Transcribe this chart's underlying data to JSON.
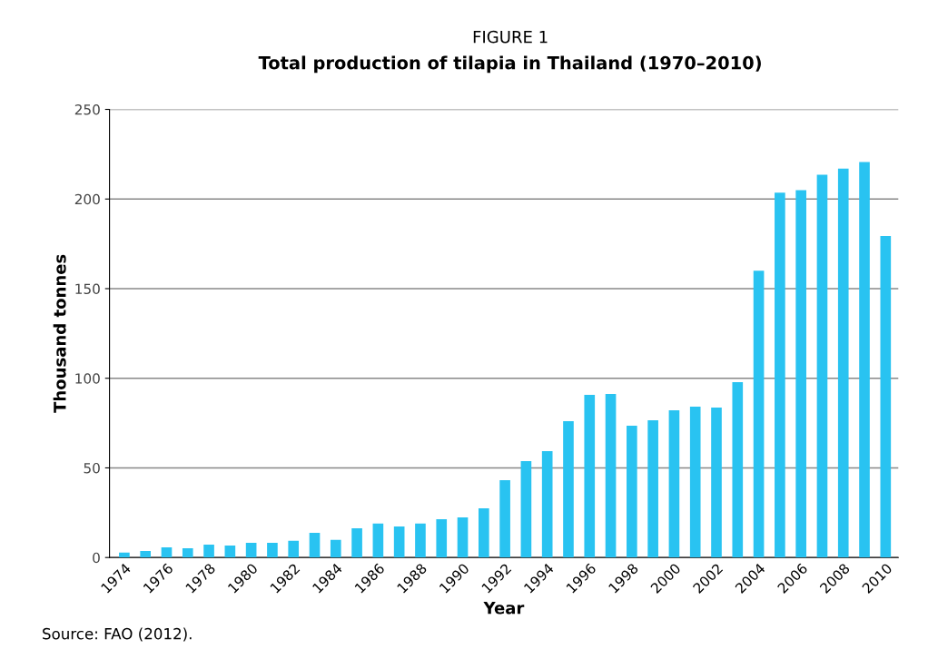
{
  "chart_data": {
    "type": "bar",
    "title": "FIGURE 1",
    "subtitle": "Total production of tilapia in Thailand (1970–2010)",
    "xlabel": "Year",
    "ylabel": "Thousand tonnes",
    "categories": [
      "1974",
      null,
      "1976",
      null,
      "1978",
      null,
      "1980",
      null,
      "1982",
      null,
      "1984",
      null,
      "1986",
      null,
      "1988",
      null,
      "1990",
      null,
      "1992",
      null,
      "1994",
      null,
      "1996",
      null,
      "1998",
      null,
      "2000",
      null,
      "2002",
      null,
      "2004",
      null,
      "2006",
      null,
      "2008",
      null,
      "2010"
    ],
    "values": [
      2.7,
      3.7,
      5.7,
      5.2,
      7.2,
      6.7,
      8.2,
      8.2,
      9.3,
      13.8,
      9.8,
      16.3,
      18.9,
      17.3,
      18.9,
      21.4,
      22.4,
      27.4,
      43.2,
      53.8,
      59.4,
      76.1,
      90.7,
      91.2,
      73.5,
      76.6,
      82.1,
      84.1,
      83.6,
      97.8,
      160,
      203.5,
      205,
      213.5,
      217,
      220.6,
      179.4
    ],
    "color": "#29c3f1",
    "ylim": [
      0,
      250
    ],
    "yticks": [
      0,
      50,
      100,
      150,
      200,
      250
    ],
    "grid": "y",
    "annotations": [
      "Source: FAO (2012)."
    ]
  }
}
